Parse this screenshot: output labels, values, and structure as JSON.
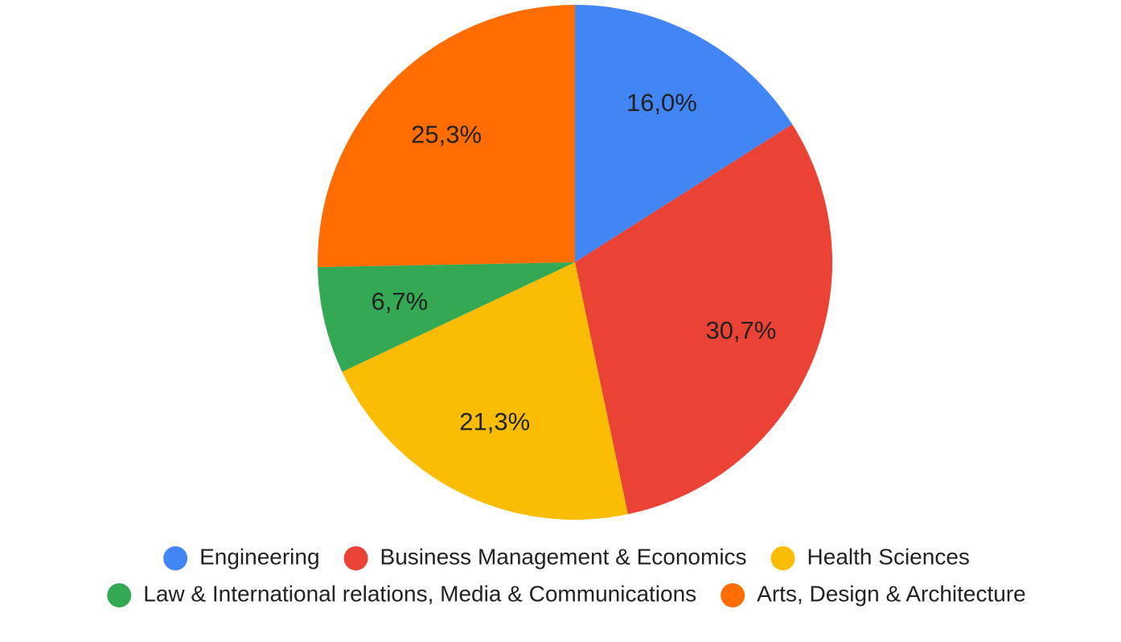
{
  "chart_data": {
    "type": "pie",
    "categories": [
      "Engineering",
      "Business Management & Economics",
      "Health Sciences",
      "Law & International relations, Media & Communications",
      "Arts, Design & Architecture"
    ],
    "values": [
      16.0,
      30.7,
      21.3,
      6.7,
      25.3
    ],
    "value_labels": [
      "16,0%",
      "30,7%",
      "21,3%",
      "6,7%",
      "25,3%"
    ],
    "colors": [
      "#4285f4",
      "#ea4335",
      "#fbbc04",
      "#34a853",
      "#ff6d01"
    ],
    "legend": "bottom"
  }
}
